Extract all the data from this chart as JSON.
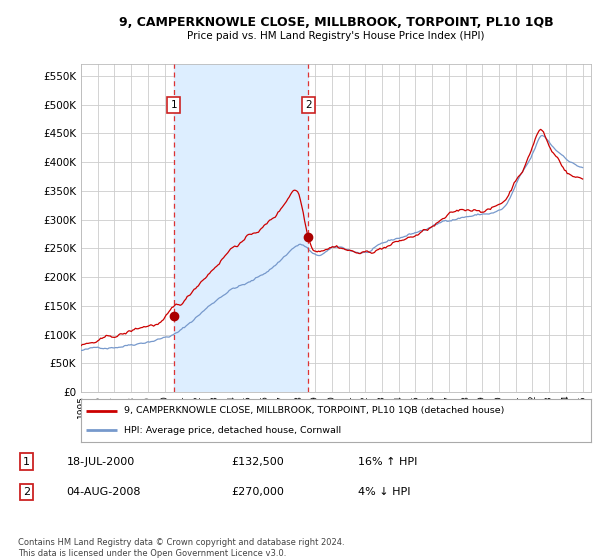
{
  "title": "9, CAMPERKNOWLE CLOSE, MILLBROOK, TORPOINT, PL10 1QB",
  "subtitle": "Price paid vs. HM Land Registry's House Price Index (HPI)",
  "ylabel_ticks": [
    0,
    50000,
    100000,
    150000,
    200000,
    250000,
    300000,
    350000,
    400000,
    450000,
    500000,
    550000
  ],
  "ylim": [
    0,
    570000
  ],
  "xlim_start": 1995.0,
  "xlim_end": 2025.5,
  "background_color": "#ffffff",
  "grid_color": "#cccccc",
  "shade_color": "#ddeeff",
  "sale1_date": 2000.54,
  "sale1_price": 132500,
  "sale1_label": "1",
  "sale2_date": 2008.59,
  "sale2_price": 270000,
  "sale2_label": "2",
  "marker_y": 500000,
  "legend_line1": "9, CAMPERKNOWLE CLOSE, MILLBROOK, TORPOINT, PL10 1QB (detached house)",
  "legend_line2": "HPI: Average price, detached house, Cornwall",
  "table_row1": [
    "1",
    "18-JUL-2000",
    "£132,500",
    "16% ↑ HPI"
  ],
  "table_row2": [
    "2",
    "04-AUG-2008",
    "£270,000",
    "4% ↓ HPI"
  ],
  "footnote": "Contains HM Land Registry data © Crown copyright and database right 2024.\nThis data is licensed under the Open Government Licence v3.0.",
  "red_line_color": "#cc0000",
  "blue_line_color": "#7799cc",
  "vline_color": "#dd3333",
  "marker_box_edge": "#cc2222",
  "sale_dot_color": "#aa0000"
}
